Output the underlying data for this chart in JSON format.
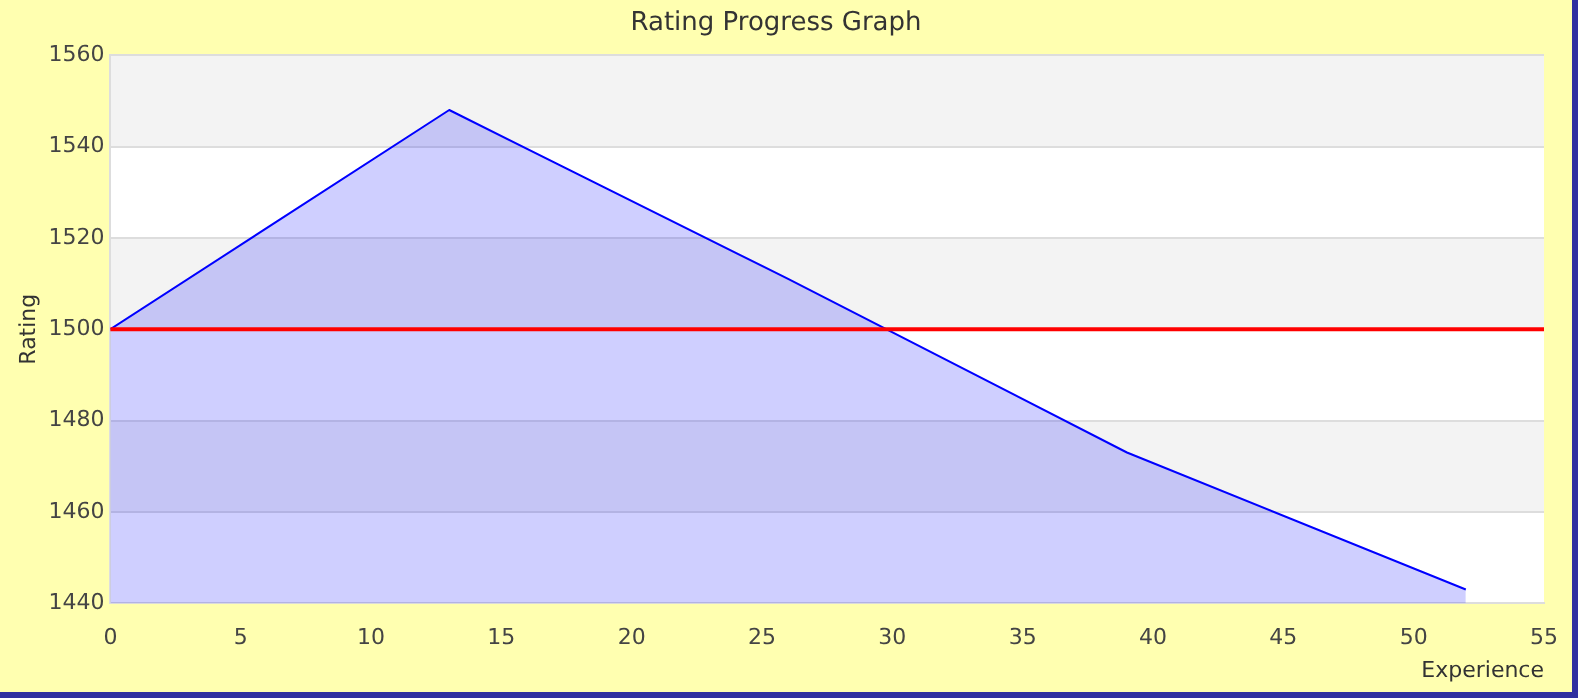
{
  "chart_data": {
    "type": "area",
    "title": "Rating Progress Graph",
    "xlabel": "Experience",
    "ylabel": "Rating",
    "x": [
      0,
      13,
      26,
      39,
      52
    ],
    "series": [
      {
        "color": "#0000ff",
        "values": [
          1500,
          1548,
          1511,
          1473,
          1443
        ]
      }
    ],
    "xlim": [
      0,
      55
    ],
    "xticks": [
      0,
      5,
      10,
      15,
      20,
      25,
      30,
      35,
      40,
      45,
      50,
      55
    ],
    "ylim": [
      1440,
      1560
    ],
    "yticks": [
      1440,
      1460,
      1480,
      1500,
      1520,
      1540,
      1560
    ],
    "ref_lines": [
      {
        "axis": "y",
        "value": 1500,
        "color": "#ff0000"
      }
    ],
    "grid": "y",
    "legend": false,
    "marker": "none",
    "line_style": "solid"
  }
}
